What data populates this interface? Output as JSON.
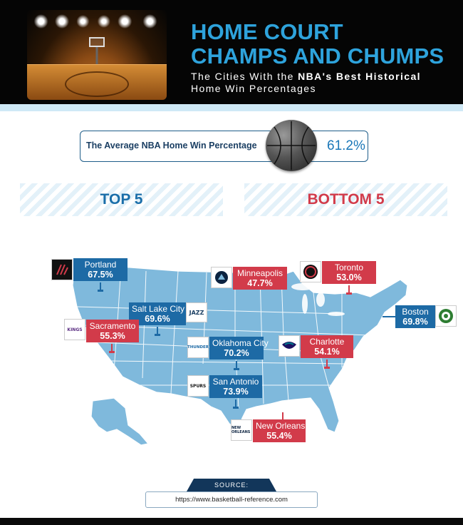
{
  "header": {
    "title_line1": "HOME COURT",
    "title_line2": "CHAMPS AND CHUMPS",
    "subtitle_pre": "The Cities With the ",
    "subtitle_bold": "NBA's Best Historical",
    "subtitle_post": " Home Win Percentages"
  },
  "average": {
    "label": "The Average NBA Home Win Percentage",
    "value": "61.2%"
  },
  "sections": {
    "top": "TOP 5",
    "bottom": "BOTTOM 5"
  },
  "colors": {
    "top_blue": "#1d6aa5",
    "bottom_red": "#d23b4a",
    "title_blue": "#2ea3dc",
    "map_blue": "#7fb9dc"
  },
  "cities": {
    "portland": {
      "city": "Portland",
      "pct": "67.5%",
      "group": "top"
    },
    "salt_lake_city": {
      "city": "Salt Lake City",
      "pct": "69.6%",
      "group": "top"
    },
    "sacramento": {
      "city": "Sacramento",
      "pct": "55.3%",
      "group": "bottom"
    },
    "minneapolis": {
      "city": "Minneapolis",
      "pct": "47.7%",
      "group": "bottom"
    },
    "toronto": {
      "city": "Toronto",
      "pct": "53.0%",
      "group": "bottom"
    },
    "boston": {
      "city": "Boston",
      "pct": "69.8%",
      "group": "top"
    },
    "oklahoma_city": {
      "city": "Oklahoma City",
      "pct": "70.2%",
      "group": "top"
    },
    "charlotte": {
      "city": "Charlotte",
      "pct": "54.1%",
      "group": "bottom"
    },
    "san_antonio": {
      "city": "San Antonio",
      "pct": "73.9%",
      "group": "top"
    },
    "new_orleans": {
      "city": "New Orleans",
      "pct": "55.4%",
      "group": "bottom"
    }
  },
  "logos": {
    "portland": "trail-blazers-logo",
    "salt_lake_city": "jazz-logo",
    "jazz_text": "JAZZ",
    "sacramento": "kings-logo",
    "kings_text": "KINGS",
    "minneapolis": "timberwolves-logo",
    "toronto": "raptors-logo",
    "boston": "celtics-logo",
    "oklahoma_city": "thunder-logo",
    "thunder_text": "THUNDER",
    "charlotte": "hornets-logo",
    "san_antonio": "spurs-logo",
    "spurs_text": "SPURS",
    "new_orleans": "pelicans-logo",
    "pelicans_text": "NEW ORLEANS"
  },
  "source": {
    "label": "SOURCE:",
    "url": "https://www.basketball-reference.com"
  }
}
